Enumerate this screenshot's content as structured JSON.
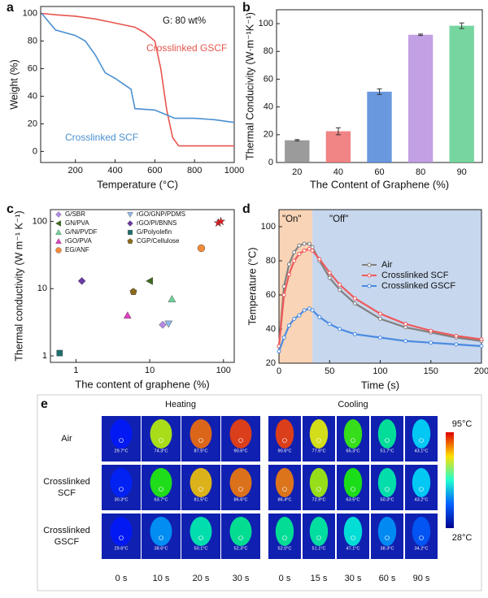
{
  "chart_data": [
    {
      "type": "line",
      "panel": "a",
      "xlabel": "Temperature (°C)",
      "ylabel": "Weight (%)",
      "annotations": [
        "G: 80 wt%"
      ],
      "xlim": [
        25,
        1000
      ],
      "ylim": [
        -8,
        105
      ],
      "xticks": [
        200,
        400,
        600,
        800,
        1000
      ],
      "yticks": [
        0,
        20,
        40,
        60,
        80,
        100
      ],
      "series": [
        {
          "name": "Crosslinked GSCF",
          "color": "#e8554e",
          "x": [
            30,
            100,
            200,
            300,
            400,
            500,
            550,
            600,
            630,
            660,
            690,
            720,
            800,
            1000
          ],
          "values": [
            100,
            99,
            98,
            96,
            93,
            90,
            86,
            80,
            60,
            30,
            10,
            4,
            4,
            4
          ]
        },
        {
          "name": "Crosslinked SCF",
          "color": "#4a90d0",
          "x": [
            30,
            100,
            200,
            250,
            300,
            350,
            400,
            450,
            480,
            500,
            600,
            650,
            700,
            800,
            900,
            1000
          ],
          "values": [
            100,
            88,
            84,
            80,
            70,
            57,
            53,
            48,
            45,
            31,
            30,
            27,
            24,
            24,
            23,
            21
          ]
        }
      ]
    },
    {
      "type": "bar",
      "panel": "b",
      "xlabel": "The Content of Graphene (%)",
      "ylabel": "Thermal Conducivity (W·m⁻¹K⁻¹)",
      "categories": [
        "20",
        "40",
        "60",
        "80",
        "90"
      ],
      "values": [
        16,
        22.5,
        51,
        92,
        98.5
      ],
      "errors": [
        0.5,
        2.5,
        2,
        0.5,
        2
      ],
      "colors": [
        "#8a8a8a",
        "#ee6f6f",
        "#4f86d9",
        "#b98fdf",
        "#5fcf8f"
      ],
      "ylim": [
        0,
        110
      ],
      "yticks": [
        0,
        20,
        40,
        60,
        80,
        100
      ]
    },
    {
      "type": "scatter",
      "panel": "c",
      "xlabel": "The content of graphene (%)",
      "ylabel": "Thermal conductivity (W m⁻¹ K⁻¹)",
      "xlog": true,
      "ylog": true,
      "xlim": [
        0.45,
        140
      ],
      "ylim": [
        0.8,
        150
      ],
      "xticks": [
        1,
        10,
        100
      ],
      "yticks": [
        1,
        10,
        100
      ],
      "series": [
        {
          "name": "G/SBR",
          "color": "#b28be0",
          "marker": "diamond",
          "x": [
            15
          ],
          "values": [
            2.9
          ]
        },
        {
          "name": "GN/PVA",
          "color": "#3e6b1f",
          "marker": "triangle-left",
          "x": [
            10
          ],
          "values": [
            13
          ]
        },
        {
          "name": "G/Ni/PVDF",
          "color": "#6fd39a",
          "marker": "triangle-up",
          "x": [
            20
          ],
          "values": [
            7
          ]
        },
        {
          "name": "rGO/PVA",
          "color": "#e040c0",
          "marker": "triangle-up",
          "x": [
            5
          ],
          "values": [
            4
          ]
        },
        {
          "name": "EG/ANF",
          "color": "#f28c3c",
          "marker": "circle",
          "x": [
            50
          ],
          "values": [
            40
          ]
        },
        {
          "name": "rGO/GNP/PDMS",
          "color": "#8fb8e8",
          "marker": "triangle-down",
          "x": [
            18
          ],
          "values": [
            3
          ]
        },
        {
          "name": "rGO/PI/BNNS",
          "color": "#6a3aa0",
          "marker": "diamond",
          "x": [
            1.2
          ],
          "values": [
            13
          ]
        },
        {
          "name": "G/Polyolefin",
          "color": "#1f6f6f",
          "marker": "square",
          "x": [
            0.6
          ],
          "values": [
            1.1
          ]
        },
        {
          "name": "CGP/Cellulose",
          "color": "#8a6a1f",
          "marker": "pentagon",
          "x": [
            6
          ],
          "values": [
            9
          ]
        },
        {
          "color": "#e02020",
          "marker": "star",
          "x": [
            85,
            92
          ],
          "values": [
            95,
            100
          ]
        }
      ]
    },
    {
      "type": "line",
      "panel": "d",
      "xlabel": "Time (s)",
      "ylabel": "Temperature (°C)",
      "annotations": [
        "\"On\"",
        "\"Off\""
      ],
      "xlim": [
        0,
        200
      ],
      "ylim": [
        20,
        110
      ],
      "xticks": [
        0,
        50,
        100,
        150,
        200
      ],
      "yticks": [
        20,
        40,
        60,
        80,
        100
      ],
      "x": [
        0,
        5,
        10,
        15,
        20,
        25,
        30,
        33,
        40,
        50,
        60,
        75,
        100,
        125,
        150,
        175,
        200
      ],
      "series": [
        {
          "name": "Air",
          "color": "#808080",
          "values": [
            30,
            65,
            78,
            85,
            89,
            90,
            90,
            88,
            80,
            70,
            63,
            55,
            46,
            41,
            38,
            35,
            33
          ]
        },
        {
          "name": "Crosslinked SCF",
          "color": "#ee5a5a",
          "values": [
            30,
            60,
            72,
            80,
            84,
            86,
            87,
            86,
            81,
            73,
            66,
            58,
            49,
            43,
            39,
            36,
            34
          ]
        },
        {
          "name": "Crosslinked GSCF",
          "color": "#4a8ae0",
          "values": [
            27,
            35,
            42,
            46,
            48,
            51,
            52,
            51,
            47,
            43,
            40,
            37,
            35,
            33,
            32,
            31,
            30
          ]
        }
      ]
    }
  ],
  "thermal_images": {
    "panel": "e",
    "headers": [
      "Heating",
      "Cooling"
    ],
    "scale": [
      "95°C",
      "28°C"
    ],
    "times": [
      "0 s",
      "10 s",
      "20 s",
      "30 s",
      "0 s",
      "15 s",
      "30 s",
      "60 s",
      "90 s"
    ],
    "rows": [
      {
        "label": [
          "Air"
        ],
        "temps": [
          "29.7°C",
          "74.3°C",
          "87.5°C",
          "90.6°C",
          "90.6°C",
          "77.6°C",
          "65.3°C",
          "51.7°C",
          "43.1°C"
        ]
      },
      {
        "label": [
          "Crosslinked",
          "SCF"
        ],
        "temps": [
          "30.3°C",
          "63.7°C",
          "81.5°C",
          "86.6°C",
          "86.4°C",
          "72.9°C",
          "63.5°C",
          "50.3°C",
          "43.2°C"
        ]
      },
      {
        "label": [
          "Crosslinked",
          "GSCF"
        ],
        "temps": [
          "29.6°C",
          "38.6°C",
          "50.1°C",
          "52.3°C",
          "52.0°C",
          "51.1°C",
          "47.1°C",
          "38.3°C",
          "34.2°C"
        ]
      }
    ]
  }
}
